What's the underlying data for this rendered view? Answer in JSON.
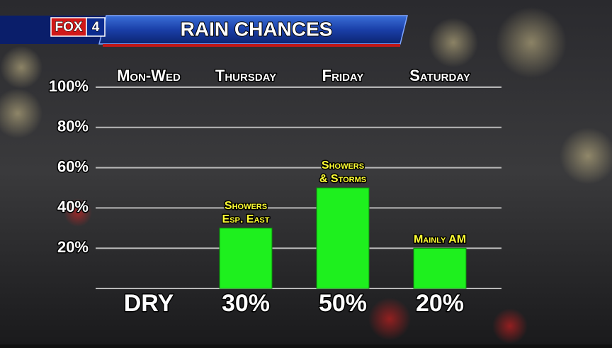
{
  "chart_data": {
    "type": "bar",
    "title": "RAIN CHANCES",
    "logo": {
      "text": "FOX",
      "number": "4"
    },
    "categories": [
      "Mon-Wed",
      "Thursday",
      "Friday",
      "Saturday"
    ],
    "values": [
      null,
      30,
      50,
      20
    ],
    "value_labels": [
      "DRY",
      "30%",
      "50%",
      "20%"
    ],
    "annotations": [
      null,
      [
        "Showers",
        "Esp. East"
      ],
      [
        "Showers",
        "& Storms"
      ],
      [
        "Mainly AM"
      ]
    ],
    "color": "#1ef01e",
    "ylim": [
      0,
      100
    ],
    "yticks": [
      {
        "value": 20,
        "label": "20%"
      },
      {
        "value": 40,
        "label": "40%"
      },
      {
        "value": 60,
        "label": "60%"
      },
      {
        "value": 80,
        "label": "80%"
      },
      {
        "value": 100,
        "label": "100%"
      }
    ],
    "grid": true
  }
}
